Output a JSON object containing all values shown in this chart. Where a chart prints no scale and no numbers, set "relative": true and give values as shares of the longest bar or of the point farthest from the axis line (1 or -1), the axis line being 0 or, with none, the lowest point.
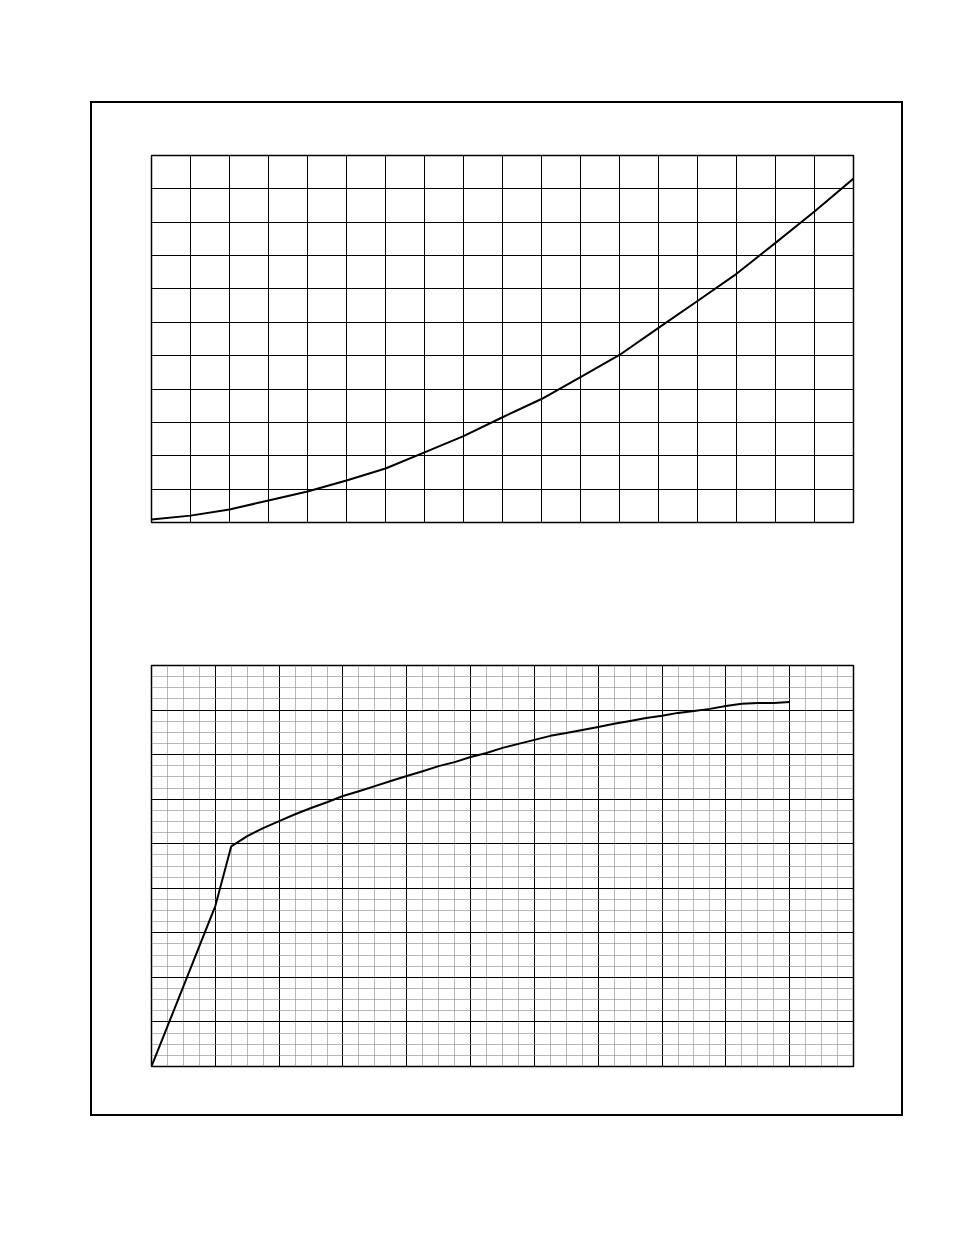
{
  "chart_data": [
    {
      "type": "line",
      "relative": true,
      "grid": true,
      "tick_labels": false,
      "color": "#000000",
      "categories": [
        null,
        null,
        null,
        null,
        null,
        null,
        null,
        null,
        null,
        null,
        null,
        null,
        null,
        null,
        null,
        null,
        null,
        null,
        null
      ],
      "values": [
        0.009,
        0.02,
        0.038,
        0.064,
        0.09,
        0.122,
        0.157,
        0.204,
        0.251,
        0.306,
        0.359,
        0.423,
        0.487,
        0.566,
        0.644,
        0.723,
        0.813,
        0.904,
        1
      ]
    },
    {
      "type": "line",
      "relative": true,
      "grid": true,
      "tick_labels": false,
      "color": "#000000",
      "categories": [
        null,
        null,
        null,
        null,
        null,
        null,
        null,
        null,
        null,
        null,
        null,
        null,
        null,
        null,
        null,
        null,
        null,
        null,
        null,
        null,
        null,
        null,
        null,
        null,
        null,
        null,
        null,
        null,
        null,
        null,
        null,
        null,
        null,
        null,
        null,
        null,
        null,
        null,
        null,
        null,
        null
      ],
      "values": [
        0,
        0.11,
        0.22,
        0.33,
        0.44,
        0.604,
        0.632,
        0.654,
        0.673,
        0.692,
        0.709,
        0.725,
        0.742,
        0.755,
        0.769,
        0.783,
        0.797,
        0.81,
        0.824,
        0.835,
        0.849,
        0.86,
        0.874,
        0.885,
        0.896,
        0.907,
        0.915,
        0.923,
        0.931,
        0.94,
        0.948,
        0.956,
        0.962,
        0.97,
        0.975,
        0.981,
        0.989,
        0.995,
        0.997,
        0.997,
        1
      ]
    }
  ]
}
